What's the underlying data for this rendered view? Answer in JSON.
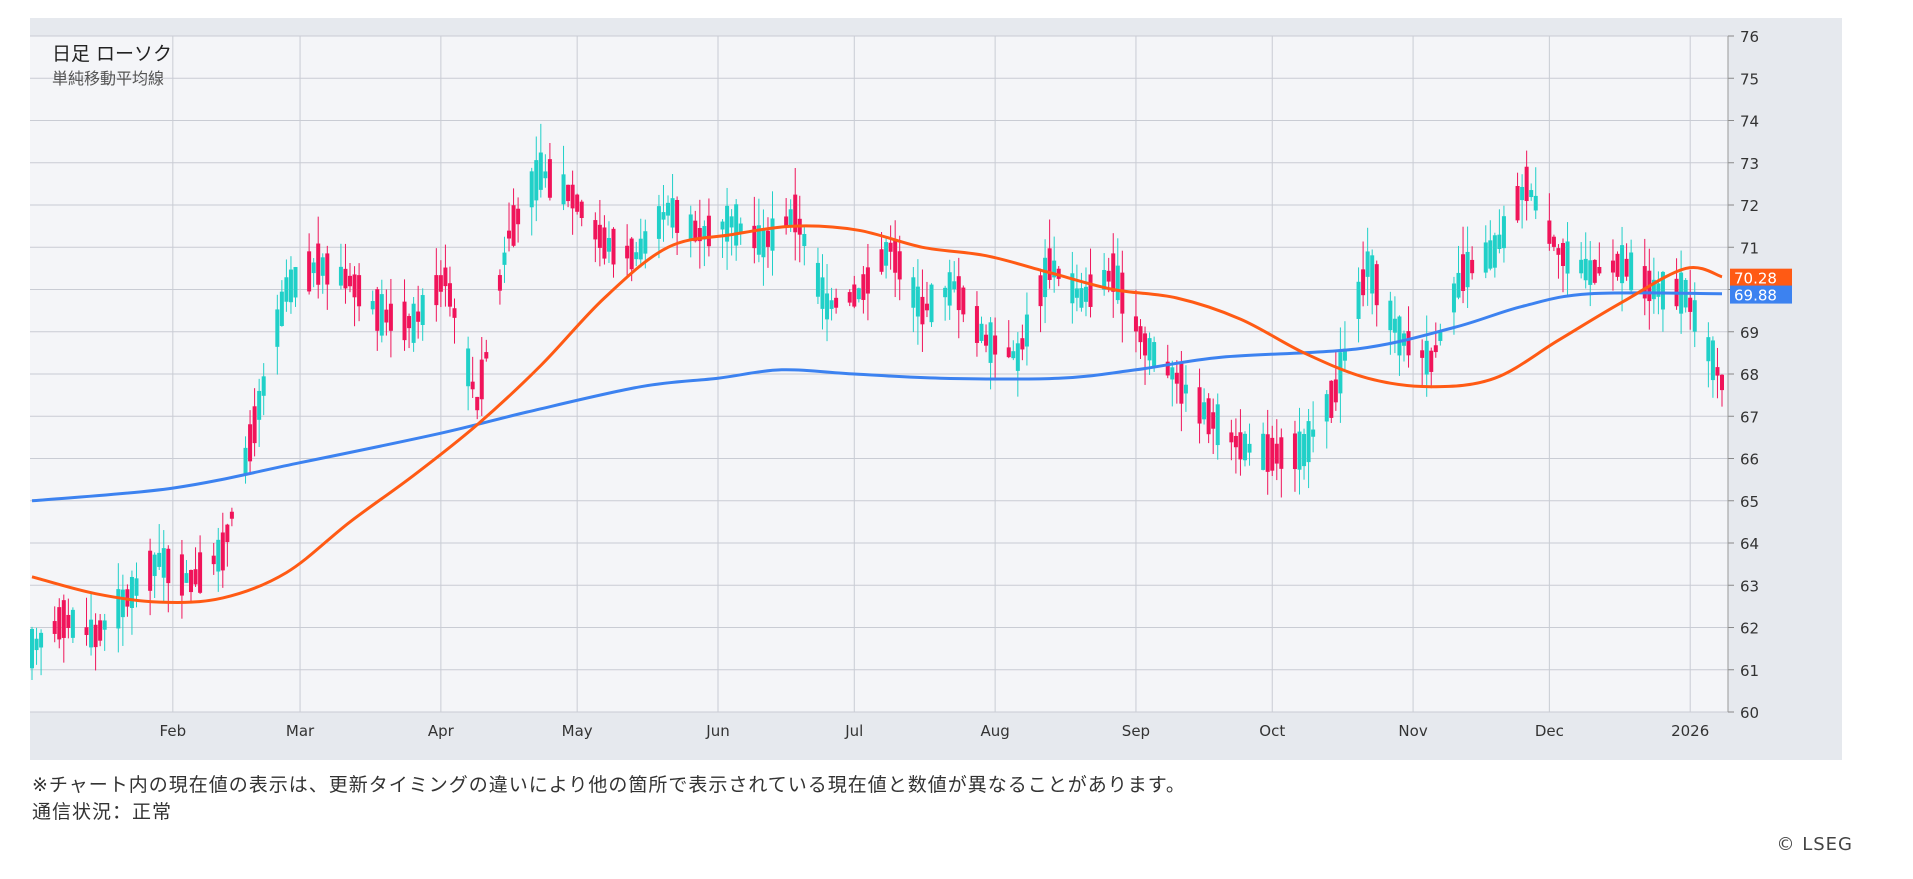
{
  "chart_data": {
    "type": "candlestick",
    "title": "日足 ローソク",
    "subtitle": "単純移動平均線",
    "ylim": [
      60,
      76
    ],
    "yticks": [
      "60",
      "61",
      "62",
      "63",
      "64",
      "65",
      "66",
      "67",
      "68",
      "69",
      "70",
      "71",
      "72",
      "73",
      "74",
      "75",
      "76"
    ],
    "xticks": [
      "Feb",
      "Mar",
      "Apr",
      "May",
      "Jun",
      "Jul",
      "Aug",
      "Sep",
      "Oct",
      "Nov",
      "Dec",
      "2026"
    ],
    "x_range": [
      "2025-01-01",
      "2026-01-08"
    ],
    "colors": {
      "up": "#20d0c8",
      "down": "#f0145a",
      "ma_short": "#ff5a14",
      "ma_long": "#3c82f0"
    },
    "last_values": {
      "ma_short": "70.28",
      "ma_long": "69.88"
    },
    "closes": [
      [
        "2025-01-01",
        61.5
      ],
      [
        "2025-01-08",
        62.2
      ],
      [
        "2025-01-15",
        61.8
      ],
      [
        "2025-01-22",
        62.7
      ],
      [
        "2025-01-29",
        63.6
      ],
      [
        "2025-02-05",
        63.1
      ],
      [
        "2025-02-12",
        63.8
      ],
      [
        "2025-02-19",
        66.8
      ],
      [
        "2025-02-26",
        70.0
      ],
      [
        "2025-03-05",
        70.6
      ],
      [
        "2025-03-12",
        70.2
      ],
      [
        "2025-03-19",
        69.4
      ],
      [
        "2025-03-26",
        69.2
      ],
      [
        "2025-04-02",
        70.3
      ],
      [
        "2025-04-09",
        67.3
      ],
      [
        "2025-04-16",
        71.3
      ],
      [
        "2025-04-23",
        72.8
      ],
      [
        "2025-04-30",
        72.2
      ],
      [
        "2025-05-07",
        71.1
      ],
      [
        "2025-05-14",
        70.8
      ],
      [
        "2025-05-21",
        71.9
      ],
      [
        "2025-05-28",
        71.3
      ],
      [
        "2025-06-04",
        71.6
      ],
      [
        "2025-06-11",
        71.1
      ],
      [
        "2025-06-18",
        71.8
      ],
      [
        "2025-06-25",
        69.6
      ],
      [
        "2025-07-02",
        69.9
      ],
      [
        "2025-07-09",
        71.0
      ],
      [
        "2025-07-16",
        69.5
      ],
      [
        "2025-07-23",
        70.1
      ],
      [
        "2025-07-30",
        68.8
      ],
      [
        "2025-08-06",
        68.4
      ],
      [
        "2025-08-13",
        70.6
      ],
      [
        "2025-08-20",
        69.8
      ],
      [
        "2025-08-27",
        70.4
      ],
      [
        "2025-09-03",
        68.7
      ],
      [
        "2025-09-10",
        67.9
      ],
      [
        "2025-09-17",
        67.0
      ],
      [
        "2025-09-24",
        66.3
      ],
      [
        "2025-10-01",
        66.1
      ],
      [
        "2025-10-08",
        66.2
      ],
      [
        "2025-10-15",
        67.6
      ],
      [
        "2025-10-22",
        70.6
      ],
      [
        "2025-10-29",
        68.9
      ],
      [
        "2025-11-05",
        68.3
      ],
      [
        "2025-11-12",
        70.4
      ],
      [
        "2025-11-19",
        70.9
      ],
      [
        "2025-11-26",
        72.5
      ],
      [
        "2025-12-03",
        70.9
      ],
      [
        "2025-12-10",
        70.4
      ],
      [
        "2025-12-17",
        70.6
      ],
      [
        "2025-12-24",
        70.0
      ],
      [
        "2025-12-31",
        69.9
      ],
      [
        "2026-01-08",
        67.8
      ]
    ],
    "ma_short": [
      [
        "2025-01-01",
        63.2
      ],
      [
        "2025-01-15",
        62.8
      ],
      [
        "2025-01-29",
        62.6
      ],
      [
        "2025-02-12",
        62.7
      ],
      [
        "2025-02-26",
        63.3
      ],
      [
        "2025-03-12",
        64.5
      ],
      [
        "2025-03-26",
        65.6
      ],
      [
        "2025-04-09",
        66.8
      ],
      [
        "2025-04-23",
        68.2
      ],
      [
        "2025-05-07",
        69.8
      ],
      [
        "2025-05-21",
        71.0
      ],
      [
        "2025-06-04",
        71.3
      ],
      [
        "2025-06-18",
        71.5
      ],
      [
        "2025-07-02",
        71.4
      ],
      [
        "2025-07-16",
        71.0
      ],
      [
        "2025-07-30",
        70.8
      ],
      [
        "2025-08-13",
        70.4
      ],
      [
        "2025-08-27",
        70.0
      ],
      [
        "2025-09-10",
        69.8
      ],
      [
        "2025-09-24",
        69.3
      ],
      [
        "2025-10-08",
        68.5
      ],
      [
        "2025-10-22",
        67.9
      ],
      [
        "2025-11-05",
        67.7
      ],
      [
        "2025-11-19",
        67.9
      ],
      [
        "2025-12-03",
        68.8
      ],
      [
        "2025-12-17",
        69.7
      ],
      [
        "2025-12-31",
        70.5
      ],
      [
        "2026-01-08",
        70.3
      ]
    ],
    "ma_long": [
      [
        "2025-01-01",
        65.0
      ],
      [
        "2025-02-01",
        65.3
      ],
      [
        "2025-03-01",
        65.9
      ],
      [
        "2025-04-01",
        66.6
      ],
      [
        "2025-04-20",
        67.1
      ],
      [
        "2025-05-15",
        67.7
      ],
      [
        "2025-06-01",
        67.9
      ],
      [
        "2025-06-15",
        68.1
      ],
      [
        "2025-07-01",
        68.0
      ],
      [
        "2025-07-20",
        67.9
      ],
      [
        "2025-08-15",
        67.9
      ],
      [
        "2025-09-01",
        68.1
      ],
      [
        "2025-09-20",
        68.4
      ],
      [
        "2025-10-20",
        68.6
      ],
      [
        "2025-11-10",
        69.1
      ],
      [
        "2025-11-25",
        69.6
      ],
      [
        "2025-12-10",
        69.9
      ],
      [
        "2026-01-08",
        69.9
      ]
    ]
  },
  "footer": {
    "note": "※チャート内の現在値の表示は、更新タイミングの違いにより他の箇所で表示されている現在値と数値が異なることがあります。",
    "status": "通信状況：正常",
    "copyright": "© LSEG"
  }
}
